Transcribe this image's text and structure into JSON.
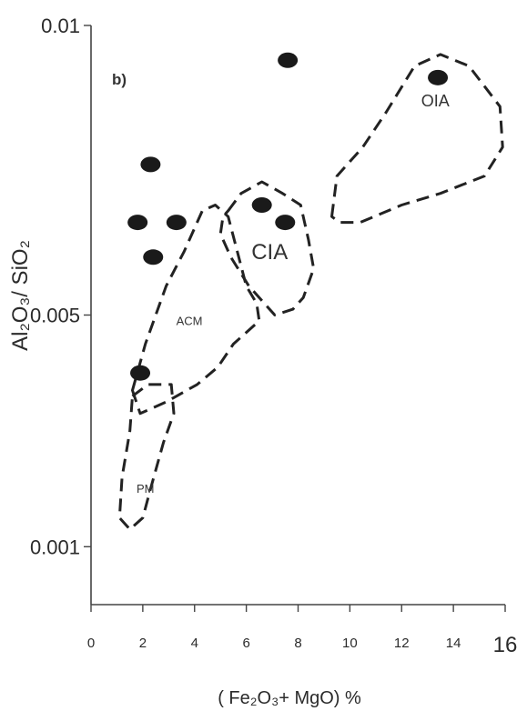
{
  "chart_data": {
    "type": "scatter",
    "panel_label": "b)",
    "xlabel": "( Fe₂O₃+ MgO) %",
    "ylabel": "Al₂O₃/ SiO₂",
    "xlim": [
      0,
      16
    ],
    "ylim": [
      0,
      0.01
    ],
    "x_ticks": [
      {
        "value": 0,
        "label": "0"
      },
      {
        "value": 2,
        "label": "2"
      },
      {
        "value": 4,
        "label": "4"
      },
      {
        "value": 6,
        "label": "6"
      },
      {
        "value": 8,
        "label": "8"
      },
      {
        "value": 10,
        "label": "10"
      },
      {
        "value": 12,
        "label": "12"
      },
      {
        "value": 14,
        "label": "14"
      },
      {
        "value": 16,
        "label": "16"
      }
    ],
    "y_ticks": [
      {
        "value": 0.001,
        "label": "0.001"
      },
      {
        "value": 0.005,
        "label": "0.005"
      },
      {
        "value": 0.01,
        "label": "0.01"
      }
    ],
    "points": [
      {
        "x": 7.6,
        "y": 0.0094
      },
      {
        "x": 13.4,
        "y": 0.0091
      },
      {
        "x": 2.3,
        "y": 0.0076
      },
      {
        "x": 6.6,
        "y": 0.0069
      },
      {
        "x": 1.8,
        "y": 0.0066
      },
      {
        "x": 3.3,
        "y": 0.0066
      },
      {
        "x": 7.5,
        "y": 0.0066
      },
      {
        "x": 2.4,
        "y": 0.006
      },
      {
        "x": 1.9,
        "y": 0.004
      }
    ],
    "fields": [
      {
        "label": "OIA",
        "label_at": [
          13.3,
          0.0087
        ],
        "outline": [
          [
            9.3,
            0.0067
          ],
          [
            9.5,
            0.0074
          ],
          [
            10.5,
            0.0079
          ],
          [
            11.4,
            0.0085
          ],
          [
            12.5,
            0.0093
          ],
          [
            13.5,
            0.0095
          ],
          [
            14.6,
            0.0093
          ],
          [
            15.8,
            0.0086
          ],
          [
            15.9,
            0.0079
          ],
          [
            15.2,
            0.0074
          ],
          [
            13.5,
            0.0071
          ],
          [
            12.0,
            0.0069
          ],
          [
            10.4,
            0.0066
          ],
          [
            9.6,
            0.0066
          ]
        ]
      },
      {
        "label": "CIA",
        "label_at": [
          6.9,
          0.0061
        ],
        "outline": [
          [
            5.3,
            0.0068
          ],
          [
            5.8,
            0.0071
          ],
          [
            6.6,
            0.0073
          ],
          [
            7.4,
            0.0071
          ],
          [
            8.1,
            0.0069
          ],
          [
            8.4,
            0.0063
          ],
          [
            8.6,
            0.0058
          ],
          [
            8.2,
            0.0053
          ],
          [
            7.8,
            0.0051
          ],
          [
            7.1,
            0.005
          ],
          [
            6.1,
            0.0055
          ],
          [
            5.4,
            0.006
          ],
          [
            5.0,
            0.0064
          ],
          [
            5.1,
            0.0067
          ]
        ]
      },
      {
        "label": "ACM",
        "label_at": [
          3.8,
          0.0049
        ],
        "outline": [
          [
            1.6,
            0.0037
          ],
          [
            2.1,
            0.0045
          ],
          [
            2.9,
            0.0055
          ],
          [
            3.6,
            0.0061
          ],
          [
            4.3,
            0.0068
          ],
          [
            4.8,
            0.0069
          ],
          [
            5.3,
            0.0067
          ],
          [
            6.0,
            0.0055
          ],
          [
            6.4,
            0.0052
          ],
          [
            6.5,
            0.0049
          ],
          [
            5.5,
            0.0045
          ],
          [
            4.9,
            0.0041
          ],
          [
            4.1,
            0.0038
          ],
          [
            2.9,
            0.0035
          ],
          [
            1.9,
            0.0033
          ]
        ]
      },
      {
        "label": "PM",
        "label_at": [
          2.1,
          0.002
        ],
        "outline": [
          [
            1.6,
            0.0036
          ],
          [
            2.2,
            0.0038
          ],
          [
            3.1,
            0.0038
          ],
          [
            3.2,
            0.0033
          ],
          [
            2.8,
            0.0028
          ],
          [
            2.3,
            0.002
          ],
          [
            2.0,
            0.0015
          ],
          [
            1.5,
            0.0013
          ],
          [
            1.1,
            0.0015
          ],
          [
            1.2,
            0.0022
          ],
          [
            1.5,
            0.003
          ]
        ]
      }
    ]
  }
}
